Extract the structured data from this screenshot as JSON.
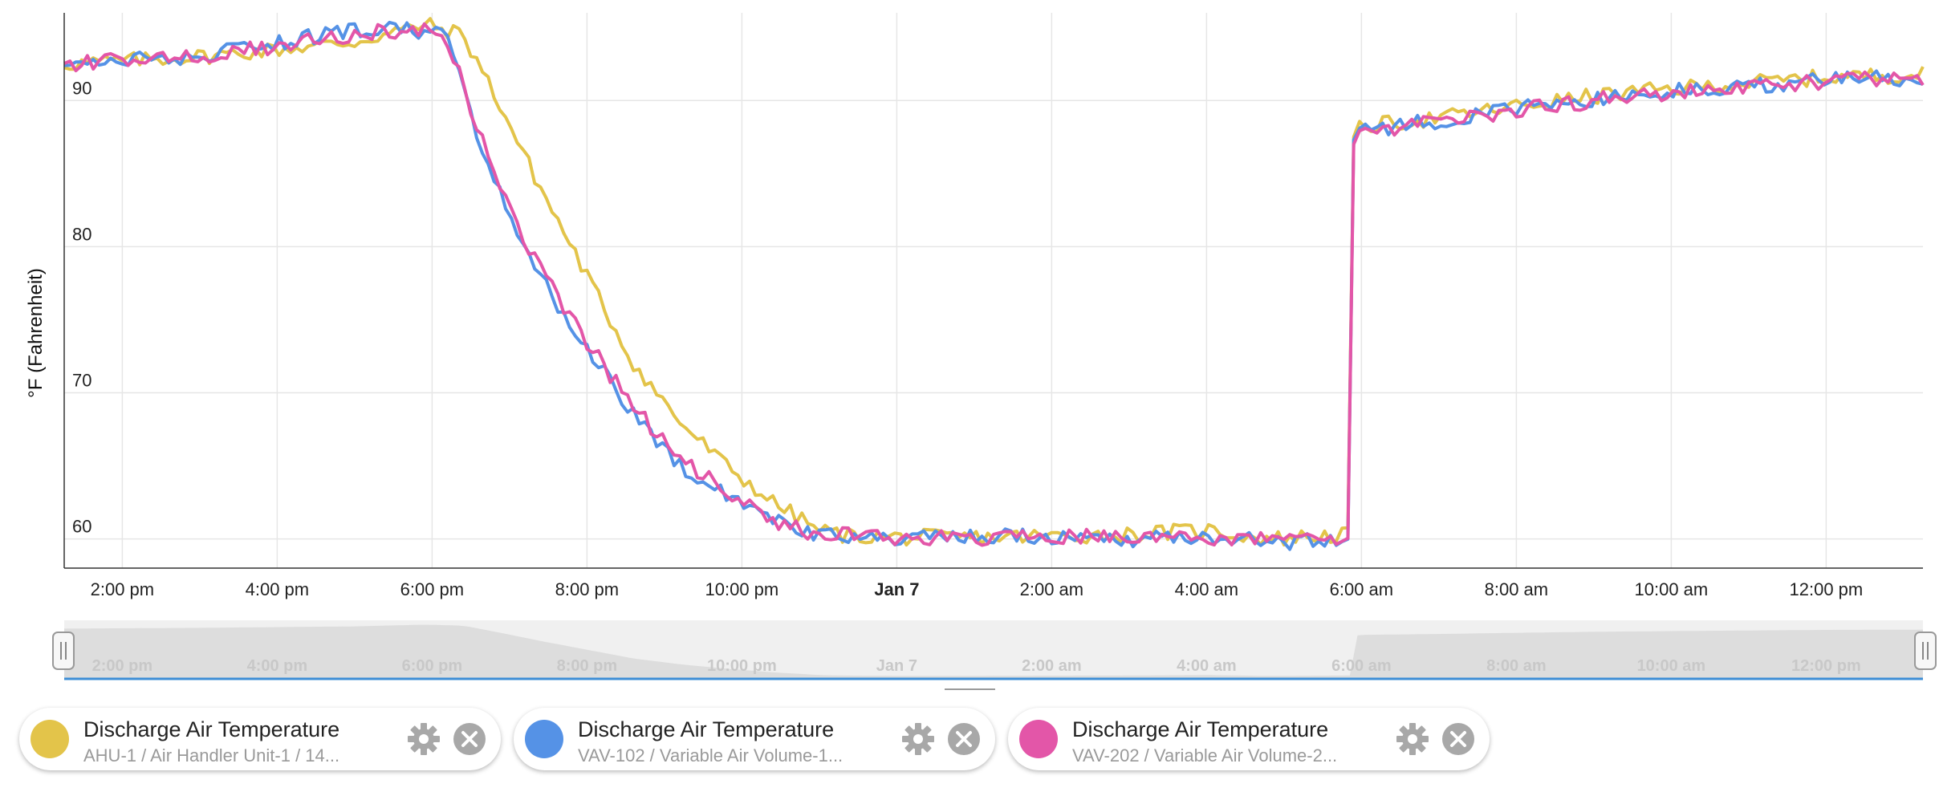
{
  "chart_data": {
    "type": "line",
    "title": "",
    "xlabel": "",
    "ylabel": "°F (Fahrenheit)",
    "ylim": [
      58,
      96
    ],
    "grid": true,
    "x_range_hours": [
      -10.75,
      13.25
    ],
    "x_ticks": [
      {
        "h": -10,
        "label": "2:00 pm",
        "bold": false
      },
      {
        "h": -8,
        "label": "4:00 pm",
        "bold": false
      },
      {
        "h": -6,
        "label": "6:00 pm",
        "bold": false
      },
      {
        "h": -4,
        "label": "8:00 pm",
        "bold": false
      },
      {
        "h": -2,
        "label": "10:00 pm",
        "bold": false
      },
      {
        "h": 0,
        "label": "Jan 7",
        "bold": true
      },
      {
        "h": 2,
        "label": "2:00 am",
        "bold": false
      },
      {
        "h": 4,
        "label": "4:00 am",
        "bold": false
      },
      {
        "h": 6,
        "label": "6:00 am",
        "bold": false
      },
      {
        "h": 8,
        "label": "8:00 am",
        "bold": false
      },
      {
        "h": 10,
        "label": "10:00 am",
        "bold": false
      },
      {
        "h": 12,
        "label": "12:00 pm",
        "bold": false
      }
    ],
    "y_ticks": [
      60,
      70,
      80,
      90
    ],
    "series": [
      {
        "name": "Discharge Air Temperature",
        "color": "#e3c44a",
        "x": [
          -10.75,
          -9,
          -7,
          -6.1,
          -5.6,
          -5.2,
          -4.6,
          -4,
          -3.4,
          -2.8,
          -2.2,
          -1.6,
          -1,
          -0.6,
          0,
          1,
          2,
          3,
          4,
          4.8,
          5.5,
          5.85,
          5.9,
          6,
          7,
          8,
          9,
          10,
          11,
          12,
          13.25
        ],
        "y": [
          92.5,
          93,
          94,
          95.2,
          94.5,
          90.5,
          84,
          78,
          72,
          68,
          65,
          62.5,
          60.6,
          60.2,
          60.1,
          60.1,
          60.2,
          60.3,
          60.6,
          60,
          60.2,
          60.3,
          87.5,
          88.2,
          88.8,
          89.6,
          90.3,
          90.8,
          91.2,
          91.6,
          91.8
        ]
      },
      {
        "name": "Discharge Air Temperature",
        "color": "#5592e6",
        "x": [
          -10.75,
          -9,
          -7.1,
          -6.1,
          -5.8,
          -5.5,
          -5,
          -4.5,
          -4,
          -3.4,
          -2.8,
          -2.2,
          -1.5,
          -1,
          0,
          1,
          2,
          3,
          4,
          5,
          5.85,
          5.9,
          6,
          7,
          8,
          9,
          10,
          11,
          12,
          13.25
        ],
        "y": [
          92.5,
          93,
          94.8,
          94.8,
          94.2,
          89,
          82,
          77,
          73,
          68.5,
          65,
          63,
          61,
          60.2,
          60,
          60.2,
          60.1,
          60,
          60.2,
          59.8,
          60,
          87.3,
          88,
          88.6,
          89.4,
          90.1,
          90.6,
          91,
          91.4,
          91.6
        ]
      },
      {
        "name": "Discharge Air Temperature",
        "color": "#e356a8",
        "x": [
          -10.75,
          -9,
          -7,
          -6.1,
          -5.8,
          -5.5,
          -5,
          -4.5,
          -4,
          -3.4,
          -2.8,
          -2.2,
          -1.5,
          -1,
          0,
          1,
          2,
          3,
          4,
          5,
          5.85,
          5.9,
          6,
          7,
          8,
          9,
          10,
          11,
          12,
          13.25
        ],
        "y": [
          92.5,
          93,
          94.5,
          95,
          94.2,
          89.5,
          82.5,
          77.5,
          73.5,
          69,
          65.5,
          63.2,
          61,
          60.3,
          60.1,
          60,
          60.1,
          60.2,
          60,
          59.9,
          60.1,
          87,
          87.8,
          88.5,
          89.3,
          90,
          90.5,
          91,
          91.3,
          91.6
        ]
      }
    ]
  },
  "navigator": {
    "labels": [
      "2:00 pm",
      "4:00 pm",
      "6:00 pm",
      "8:00 pm",
      "10:00 pm",
      "Jan 7",
      "2:00 am",
      "4:00 am",
      "6:00 am",
      "8:00 am",
      "10:00 am",
      "12:00 pm"
    ]
  },
  "legend": [
    {
      "title": "Discharge Air Temperature",
      "subtitle": "AHU-1 / Air Handler Unit-1 / 14...",
      "color": "#e3c44a",
      "gear_icon": "gear-icon",
      "close_icon": "close-icon"
    },
    {
      "title": "Discharge Air Temperature",
      "subtitle": "VAV-102 / Variable Air Volume-1...",
      "color": "#5592e6",
      "gear_icon": "gear-icon",
      "close_icon": "close-icon"
    },
    {
      "title": "Discharge Air Temperature",
      "subtitle": "VAV-202 / Variable Air Volume-2...",
      "color": "#e356a8",
      "gear_icon": "gear-icon",
      "close_icon": "close-icon"
    }
  ]
}
